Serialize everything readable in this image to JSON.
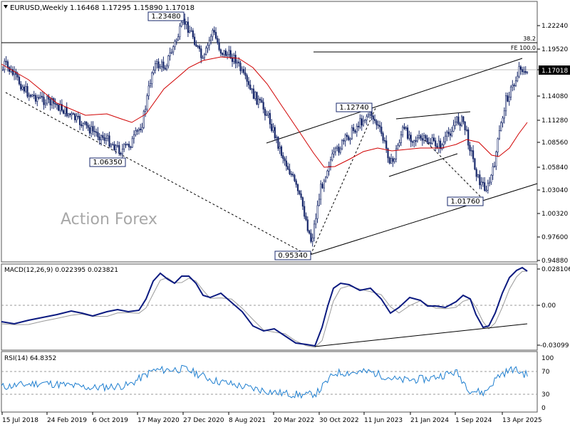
{
  "header": {
    "symbol_label": "EURUSD,Weekly",
    "ohlc": "1.16468 1.17295 1.15890 1.17018"
  },
  "watermark": "Action Forex",
  "colors": {
    "candle": "#1a2a6c",
    "ma": "#d00000",
    "macd": "#0b1a80",
    "signal": "#9a9a9a",
    "rsi": "#1f7fd0",
    "price_tag_bg": "#000000",
    "price_tag_fg": "#ffffff"
  },
  "price_panel": {
    "ylim": [
      0.9488,
      1.2522
    ],
    "y_ticks": [
      "1.22240",
      "1.19520",
      "1.16800",
      "1.14080",
      "1.11280",
      "1.08560",
      "1.05840",
      "1.03040",
      "1.00320",
      "0.97600",
      "0.94880"
    ],
    "current_price_label": "1.17018",
    "fib_labels": {
      "retracement": "38.2",
      "expansion": "FE 100.0"
    },
    "pivot_labels": [
      "1.23480",
      "1.06350",
      "0.95340",
      "1.12740",
      "1.01760"
    ]
  },
  "macd_panel": {
    "title": "MACD(12,26,9) 0.022395 0.023821",
    "ylim": [
      -0.035,
      0.035
    ],
    "ticks": [
      "0.028106",
      "0.00",
      "-0.03099"
    ]
  },
  "rsi_panel": {
    "title": "RSI(14) 64.8352",
    "ylim": [
      0,
      100
    ],
    "ticks": [
      "100",
      "70",
      "30",
      "0"
    ],
    "levels": [
      70,
      30
    ]
  },
  "x_axis": {
    "labels": [
      "15 Jul 2018",
      "24 Feb 2019",
      "6 Oct 2019",
      "17 May 2020",
      "27 Dec 2020",
      "8 Aug 2021",
      "20 Mar 2022",
      "30 Oct 2022",
      "11 Jun 2023",
      "21 Jan 2024",
      "1 Sep 2024",
      "13 Apr 2025"
    ]
  },
  "chart_data": {
    "type": "candlestick",
    "timeframe": "Weekly",
    "key_pivots": [
      {
        "label": "1.23480",
        "value": 1.2348
      },
      {
        "label": "1.06350",
        "value": 1.0635
      },
      {
        "label": "0.95340",
        "value": 0.9534
      },
      {
        "label": "1.12740",
        "value": 1.1274
      },
      {
        "label": "1.01760",
        "value": 1.0176
      }
    ],
    "last_close": 1.17018,
    "moving_average_last": 1.113,
    "macd_last": 0.022395,
    "macd_signal_last": 0.023821,
    "rsi_last": 64.8352
  }
}
